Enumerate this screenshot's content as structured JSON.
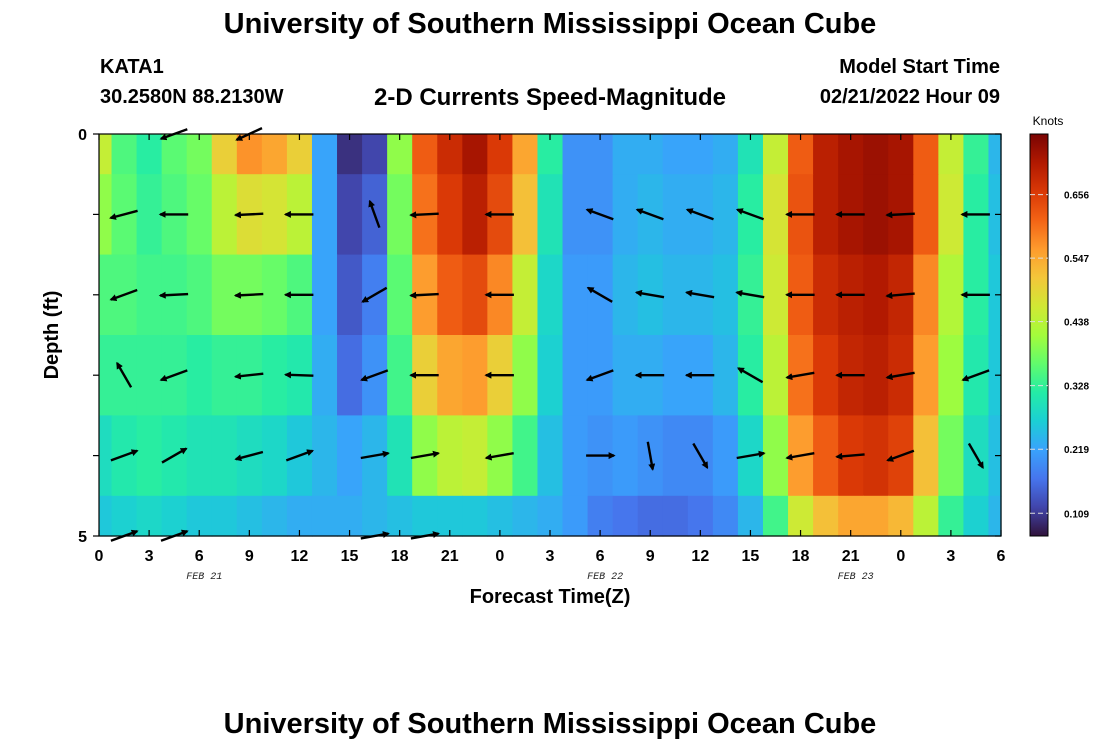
{
  "header": {
    "title": "University of Southern Mississippi Ocean Cube",
    "station": "KATA1",
    "coords": "30.2580N  88.2130W",
    "plot_title": "2-D Currents Speed-Magnitude",
    "start_label": "Model Start Time",
    "start_value": "02/21/2022 Hour 09"
  },
  "footer": {
    "title": "University of Southern Mississippi Ocean Cube"
  },
  "chart_data": {
    "type": "heatmap",
    "title": "2-D Currents Speed-Magnitude",
    "xlabel": "Forecast Time(Z)",
    "ylabel": "Depth (ft)",
    "x_tick_labels": [
      "0",
      "3",
      "6",
      "9",
      "12",
      "15",
      "18",
      "21",
      "0",
      "3",
      "6",
      "9",
      "12",
      "15",
      "18",
      "21",
      "0",
      "3",
      "6"
    ],
    "x_date_labels": [
      "FEB 21",
      "FEB 22",
      "FEB 23"
    ],
    "y_tick_labels": [
      "0",
      "5"
    ],
    "ylim": [
      0,
      5
    ],
    "colorbar": {
      "label": "Knots",
      "ticks": [
        "0.109",
        "0.219",
        "0.328",
        "0.438",
        "0.547",
        "0.656"
      ],
      "range": [
        0.07,
        0.76
      ],
      "colors": [
        "#30123b",
        "#4145ab",
        "#4675ed",
        "#39a2fc",
        "#1bcfd4",
        "#24eca6",
        "#61fc6c",
        "#a4fc3b",
        "#d1e834",
        "#f3c63a",
        "#fe9b2d",
        "#f36315",
        "#d93806",
        "#b11901",
        "#7a0403"
      ]
    },
    "time_hours": [
      0,
      1.5,
      3,
      4.5,
      6,
      7.5,
      9,
      10.5,
      12,
      13.5,
      15,
      16.5,
      18,
      19.5,
      21,
      22.5,
      24,
      25.5,
      27,
      28.5,
      30,
      31.5,
      33,
      34.5,
      36,
      37.5,
      39,
      40.5,
      42,
      43.5,
      45,
      46.5,
      48,
      49.5,
      51,
      52.5,
      54
    ],
    "depth_rows_ft": [
      0.25,
      1.0,
      2.0,
      3.0,
      4.0,
      4.75
    ],
    "speed_knots": [
      [
        0.45,
        0.35,
        0.32,
        0.36,
        0.38,
        0.5,
        0.57,
        0.55,
        0.5,
        0.22,
        0.1,
        0.12,
        0.4,
        0.62,
        0.68,
        0.72,
        0.66,
        0.55,
        0.32,
        0.2,
        0.2,
        0.23,
        0.23,
        0.22,
        0.22,
        0.23,
        0.3,
        0.45,
        0.62,
        0.7,
        0.72,
        0.73,
        0.72,
        0.62,
        0.45,
        0.33,
        0.24
      ],
      [
        0.4,
        0.36,
        0.33,
        0.35,
        0.37,
        0.44,
        0.48,
        0.47,
        0.44,
        0.22,
        0.12,
        0.15,
        0.38,
        0.6,
        0.66,
        0.7,
        0.64,
        0.52,
        0.3,
        0.2,
        0.2,
        0.23,
        0.24,
        0.23,
        0.23,
        0.24,
        0.32,
        0.47,
        0.63,
        0.7,
        0.72,
        0.73,
        0.72,
        0.62,
        0.46,
        0.32,
        0.25
      ],
      [
        0.35,
        0.35,
        0.34,
        0.34,
        0.35,
        0.38,
        0.38,
        0.37,
        0.35,
        0.22,
        0.14,
        0.18,
        0.36,
        0.56,
        0.62,
        0.64,
        0.58,
        0.45,
        0.28,
        0.21,
        0.21,
        0.24,
        0.25,
        0.24,
        0.24,
        0.25,
        0.33,
        0.46,
        0.62,
        0.68,
        0.7,
        0.71,
        0.69,
        0.58,
        0.43,
        0.32,
        0.26
      ],
      [
        0.33,
        0.33,
        0.33,
        0.33,
        0.32,
        0.33,
        0.33,
        0.32,
        0.31,
        0.23,
        0.16,
        0.2,
        0.34,
        0.5,
        0.55,
        0.56,
        0.5,
        0.4,
        0.27,
        0.21,
        0.21,
        0.23,
        0.23,
        0.22,
        0.22,
        0.24,
        0.32,
        0.44,
        0.6,
        0.66,
        0.69,
        0.7,
        0.68,
        0.56,
        0.41,
        0.31,
        0.26
      ],
      [
        0.29,
        0.31,
        0.32,
        0.31,
        0.3,
        0.3,
        0.29,
        0.28,
        0.26,
        0.24,
        0.22,
        0.24,
        0.3,
        0.4,
        0.44,
        0.45,
        0.4,
        0.34,
        0.25,
        0.21,
        0.2,
        0.21,
        0.2,
        0.19,
        0.19,
        0.21,
        0.28,
        0.4,
        0.56,
        0.62,
        0.66,
        0.67,
        0.65,
        0.52,
        0.38,
        0.29,
        0.25
      ],
      [
        0.26,
        0.27,
        0.28,
        0.27,
        0.26,
        0.26,
        0.25,
        0.24,
        0.23,
        0.23,
        0.23,
        0.24,
        0.25,
        0.26,
        0.26,
        0.26,
        0.25,
        0.24,
        0.23,
        0.21,
        0.18,
        0.17,
        0.16,
        0.16,
        0.17,
        0.19,
        0.24,
        0.34,
        0.46,
        0.52,
        0.55,
        0.55,
        0.53,
        0.44,
        0.33,
        0.27,
        0.24
      ]
    ],
    "vector_depths_ft": [
      0,
      1,
      2,
      3,
      4,
      5
    ],
    "vector_directions_deg": [
      [
        null,
        null,
        null,
        200,
        null,
        null,
        205,
        null,
        null,
        null,
        null,
        null,
        null,
        null,
        null,
        null,
        null,
        null,
        null,
        null,
        null,
        null,
        null,
        null,
        null,
        null,
        null,
        null,
        null,
        null,
        null,
        null,
        null,
        null,
        null,
        null,
        null
      ],
      [
        null,
        195,
        null,
        180,
        null,
        null,
        183,
        null,
        180,
        null,
        null,
        110,
        null,
        183,
        null,
        null,
        180,
        null,
        null,
        null,
        160,
        null,
        160,
        null,
        160,
        null,
        160,
        null,
        180,
        null,
        180,
        null,
        183,
        null,
        null,
        180,
        null
      ],
      [
        null,
        200,
        null,
        183,
        null,
        null,
        183,
        null,
        180,
        null,
        null,
        210,
        null,
        183,
        null,
        null,
        180,
        null,
        null,
        null,
        150,
        null,
        170,
        null,
        170,
        null,
        170,
        null,
        180,
        null,
        180,
        null,
        185,
        null,
        null,
        180,
        null
      ],
      [
        null,
        120,
        null,
        200,
        null,
        null,
        186,
        null,
        178,
        null,
        null,
        200,
        null,
        180,
        null,
        null,
        180,
        null,
        null,
        null,
        200,
        null,
        180,
        null,
        180,
        null,
        150,
        null,
        190,
        null,
        180,
        null,
        190,
        null,
        null,
        200,
        null
      ],
      [
        null,
        20,
        null,
        30,
        null,
        null,
        195,
        null,
        20,
        null,
        null,
        10,
        null,
        10,
        null,
        null,
        190,
        null,
        null,
        null,
        0,
        null,
        280,
        null,
        300,
        null,
        10,
        null,
        190,
        null,
        185,
        null,
        200,
        null,
        null,
        300,
        null
      ],
      [
        null,
        20,
        null,
        20,
        null,
        null,
        null,
        null,
        null,
        null,
        null,
        10,
        null,
        10,
        null,
        null,
        null,
        null,
        null,
        null,
        null,
        null,
        null,
        null,
        null,
        null,
        null,
        null,
        null,
        null,
        null,
        null,
        null,
        null,
        null,
        null,
        null
      ]
    ]
  }
}
